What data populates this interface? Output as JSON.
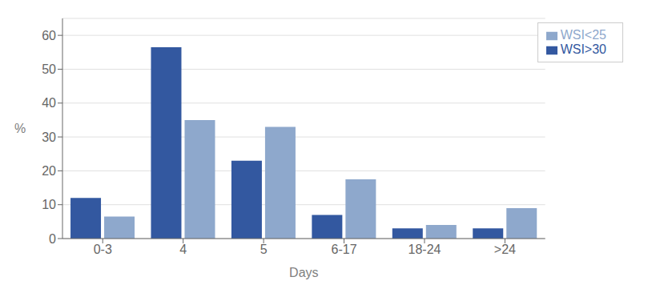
{
  "chart_data": {
    "type": "bar",
    "categories": [
      "0-3",
      "4",
      "5",
      "6-17",
      "18-24",
      ">24"
    ],
    "series": [
      {
        "name": "WSI>30",
        "color": "#3358a0",
        "values": [
          12,
          56.5,
          23,
          7,
          3,
          3
        ]
      },
      {
        "name": "WSI<25",
        "color": "#8ea8cc",
        "values": [
          6.5,
          35,
          33,
          17.5,
          4,
          9
        ]
      }
    ],
    "xlabel": "Days",
    "ylabel": "%",
    "ylim": [
      0,
      65
    ],
    "yticks": [
      0,
      10,
      20,
      30,
      40,
      50,
      60
    ],
    "grid": true,
    "legend": "upper right"
  }
}
